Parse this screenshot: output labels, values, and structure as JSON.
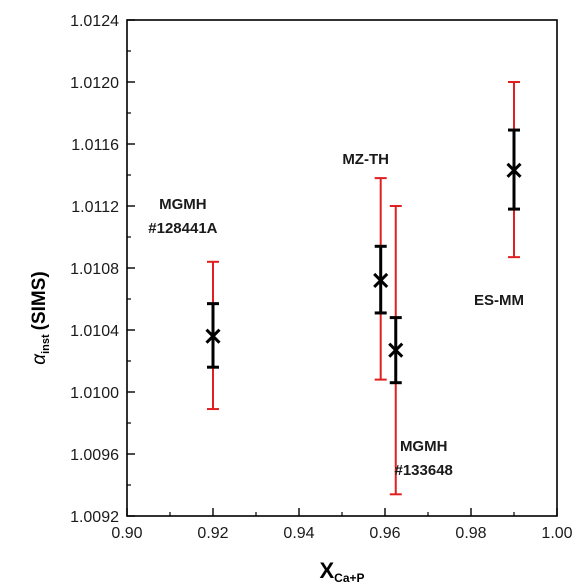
{
  "chart_data": {
    "type": "scatter",
    "title": "",
    "xlabel": {
      "main": "X",
      "sub": "Ca+P"
    },
    "ylabel": {
      "alpha": "α",
      "sub": "inst",
      "suffix": "(SIMS)"
    },
    "xlim": [
      0.9,
      1.0
    ],
    "ylim": [
      1.0092,
      1.0124
    ],
    "x_ticks": [
      "0.90",
      "0.92",
      "0.94",
      "0.96",
      "0.98",
      "1.00"
    ],
    "y_ticks": [
      "1.0092",
      "1.0096",
      "1.0100",
      "1.0104",
      "1.0108",
      "1.0112",
      "1.0116",
      "1.0120",
      "1.0124"
    ],
    "grid": false,
    "colors": {
      "inner_error": "#000000",
      "outer_error": "#e02020",
      "marker": "#000000"
    },
    "points": [
      {
        "x": 0.92,
        "y": 1.01036,
        "inner_err": [
          1.01016,
          1.01057
        ],
        "outer_err": [
          1.00989,
          1.01084
        ]
      },
      {
        "x": 0.959,
        "y": 1.01072,
        "inner_err": [
          1.01051,
          1.01094
        ],
        "outer_err": [
          1.01008,
          1.01138
        ]
      },
      {
        "x": 0.9625,
        "y": 1.01027,
        "inner_err": [
          1.01006,
          1.01048
        ],
        "outer_err": [
          1.00934,
          1.0112
        ]
      },
      {
        "x": 0.99,
        "y": 1.01143,
        "inner_err": [
          1.01118,
          1.01169
        ],
        "outer_err": [
          1.01087,
          1.012
        ]
      }
    ],
    "annotations": [
      {
        "lines": [
          "MGMH",
          "#128441A"
        ],
        "x": 0.913,
        "y": 1.01118
      },
      {
        "lines": [
          "MZ-TH"
        ],
        "x": 0.9555,
        "y": 1.01147
      },
      {
        "lines": [
          "MGMH",
          "#133648"
        ],
        "x": 0.969,
        "y": 1.00962
      },
      {
        "lines": [
          "ES-MM"
        ],
        "x": 0.9865,
        "y": 1.01056
      }
    ]
  }
}
